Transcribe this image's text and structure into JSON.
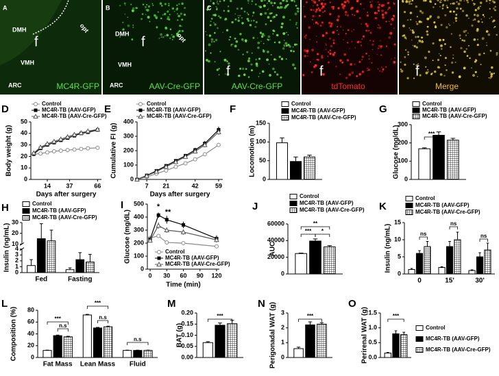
{
  "panels": [
    {
      "letter": "A",
      "labels": [
        "DMH",
        "f",
        "opt",
        "VMH",
        "ARC"
      ],
      "caption": "MC4R-GFP"
    },
    {
      "letter": "B",
      "labels": [
        "DMH",
        "f",
        "opt",
        "VMH",
        "ARC"
      ],
      "caption": "AAV-Cre-GFP"
    },
    {
      "letter": "C",
      "images": [
        {
          "label": "f",
          "caption": "AAV-Cre-GFP"
        },
        {
          "label": "f",
          "caption": "tdTomato"
        },
        {
          "label": "f",
          "caption": "Merge"
        }
      ]
    }
  ],
  "chart_data": [
    {
      "type": "line",
      "panel": "D",
      "ylabel": "Body weight (g)",
      "xlabel": "Days after surgery",
      "x": [
        0,
        7,
        14,
        21,
        28,
        35,
        42,
        49,
        56,
        66
      ],
      "xlim": [
        -3,
        70
      ],
      "xticks": [
        14,
        37,
        66
      ],
      "ylim": [
        0,
        50
      ],
      "yticks": [
        0,
        10,
        20,
        30,
        40,
        50
      ],
      "series": [
        {
          "name": "Control",
          "color": "#8a8a8a",
          "marker": "circle-open",
          "values": [
            22,
            22.5,
            23.5,
            24.5,
            25,
            25.5,
            26,
            26.5,
            27,
            27.5
          ]
        },
        {
          "name": "MC4R-TB (AAV-GFP)",
          "color": "#000000",
          "marker": "square-filled",
          "values": [
            22,
            27,
            30,
            32,
            34,
            36,
            38,
            40,
            41,
            43
          ]
        },
        {
          "name": "MC4R-TB (AAV-Cre-GFP)",
          "color": "#555555",
          "marker": "triangle-open",
          "values": [
            23,
            28,
            31,
            33,
            35,
            37,
            39,
            40.5,
            42,
            43.5
          ]
        }
      ]
    },
    {
      "type": "line",
      "panel": "E",
      "ylabel": "Cumulative FI (g)",
      "xlabel": "Days after surgery",
      "x": [
        0,
        7,
        14,
        21,
        28,
        35,
        42,
        49,
        59
      ],
      "xlim": [
        0,
        62
      ],
      "xticks": [
        7,
        21,
        42,
        59
      ],
      "ylim": [
        0,
        400
      ],
      "yticks": [
        0,
        100,
        200,
        300,
        400
      ],
      "series": [
        {
          "name": "Control",
          "color": "#8a8a8a",
          "marker": "circle-open",
          "values": [
            0,
            18,
            40,
            62,
            88,
            112,
            140,
            175,
            240
          ],
          "errors": [
            0,
            2,
            3,
            4,
            5,
            6,
            8,
            10,
            12
          ]
        },
        {
          "name": "MC4R-TB (AAV-GFP)",
          "color": "#000000",
          "marker": "square-filled",
          "values": [
            0,
            28,
            60,
            95,
            130,
            165,
            205,
            250,
            345
          ],
          "errors": [
            0,
            3,
            5,
            8,
            10,
            12,
            15,
            18,
            22
          ]
        },
        {
          "name": "MC4R-TB (AAV-Cre-GFP)",
          "color": "#555555",
          "marker": "triangle-open",
          "values": [
            0,
            25,
            55,
            88,
            122,
            158,
            195,
            240,
            330
          ],
          "errors": [
            0,
            3,
            5,
            7,
            9,
            11,
            14,
            17,
            20
          ]
        }
      ]
    },
    {
      "type": "bar",
      "panel": "F",
      "ylabel": "Locomotion (m)",
      "ylim": [
        0,
        150
      ],
      "yticks": [
        0,
        50,
        100,
        150
      ],
      "series": [
        {
          "name": "Control",
          "color": "#ffffff",
          "values": [
            98
          ],
          "errors": [
            13
          ]
        },
        {
          "name": "MC4R-TB (AAV-GFP)",
          "color": "#000000",
          "values": [
            48
          ],
          "errors": [
            12
          ]
        },
        {
          "name": "MC4R-TB (AAV-Cre-GFP)",
          "color": "#000000",
          "pattern": "grid",
          "values": [
            60
          ],
          "errors": [
            5
          ]
        }
      ]
    },
    {
      "type": "bar",
      "panel": "G",
      "ylabel": "Glucose (mg/dL)",
      "ylim": [
        0,
        300
      ],
      "yticks": [
        0,
        100,
        200,
        300
      ],
      "annotations": [
        "***"
      ],
      "series": [
        {
          "name": "Control",
          "color": "#ffffff",
          "values": [
            168
          ],
          "errors": [
            5
          ]
        },
        {
          "name": "MC4R-TB (AAV-GFP)",
          "color": "#000000",
          "values": [
            242
          ],
          "errors": [
            18
          ]
        },
        {
          "name": "MC4R-TB (AAV-Cre-GFP)",
          "color": "#000000",
          "pattern": "grid",
          "values": [
            215
          ],
          "errors": [
            10
          ]
        }
      ]
    },
    {
      "type": "bar",
      "panel": "H",
      "ylabel": "Insulin (ng/mL)",
      "categories": [
        "Fed",
        "Fasting"
      ],
      "ylim": [
        0,
        30
      ],
      "ybreak": [
        4,
        10
      ],
      "yticks": [
        0,
        1,
        2,
        3,
        4,
        10,
        20,
        30
      ],
      "series": [
        {
          "name": "Control",
          "color": "#ffffff",
          "values": [
            1.2,
            0.5
          ],
          "errors": [
            1,
            0.3
          ]
        },
        {
          "name": "MC4R-TB (AAV-GFP)",
          "color": "#000000",
          "values": [
            15,
            2.2
          ],
          "errors": [
            14,
            1.2
          ]
        },
        {
          "name": "MC4R-TB (AAV-Cre-GFP)",
          "color": "#000000",
          "pattern": "grid",
          "values": [
            13,
            1.8
          ],
          "errors": [
            10,
            1.3
          ]
        }
      ]
    },
    {
      "type": "line",
      "panel": "I",
      "ylabel": "Glucose (mg/dL)",
      "xlabel": "Time (min)",
      "annotations": [
        "*",
        "**"
      ],
      "x": [
        0,
        15,
        30,
        60,
        120
      ],
      "xlim": [
        -5,
        125
      ],
      "xticks": [
        0,
        30,
        60,
        90,
        120
      ],
      "ylim": [
        0,
        500
      ],
      "yticks": [
        0,
        100,
        200,
        300,
        400,
        500
      ],
      "series": [
        {
          "name": "Control",
          "color": "#8a8a8a",
          "marker": "circle-open",
          "values": [
            240,
            255,
            205,
            200,
            175
          ],
          "errors": [
            10,
            15,
            10,
            8,
            8
          ]
        },
        {
          "name": "MC4R-TB (AAV-GFP)",
          "color": "#000000",
          "marker": "square-filled",
          "values": [
            230,
            415,
            380,
            340,
            235
          ],
          "errors": [
            15,
            20,
            30,
            25,
            25
          ]
        },
        {
          "name": "MC4R-TB (AAV-Cre-GFP)",
          "color": "#555555",
          "marker": "triangle-open",
          "values": [
            220,
            335,
            300,
            285,
            225
          ],
          "errors": [
            15,
            25,
            20,
            20,
            20
          ]
        }
      ]
    },
    {
      "type": "bar",
      "panel": "J",
      "ylabel": "AUC",
      "ylim": [
        0,
        60000
      ],
      "yticks": [
        0,
        20000,
        40000,
        60000
      ],
      "annotations": [
        "***",
        "**",
        "*"
      ],
      "series": [
        {
          "name": "Control",
          "color": "#ffffff",
          "values": [
            24500
          ],
          "errors": [
            600
          ]
        },
        {
          "name": "MC4R-TB (AAV-GFP)",
          "color": "#000000",
          "values": [
            39500
          ],
          "errors": [
            2500
          ]
        },
        {
          "name": "MC4R-TB (AAV-Cre-GFP)",
          "color": "#000000",
          "pattern": "grid",
          "values": [
            32500
          ],
          "errors": [
            1500
          ]
        }
      ]
    },
    {
      "type": "bar",
      "panel": "K",
      "ylabel": "Insulin (ng/mL)",
      "categories": [
        "0",
        "15'",
        "30'"
      ],
      "ylim": [
        0,
        15
      ],
      "yticks": [
        0,
        5,
        10,
        15
      ],
      "annotations": [
        "ns",
        "ns",
        "ns"
      ],
      "series": [
        {
          "name": "Control",
          "color": "#ffffff",
          "values": [
            1.3,
            1.9,
            1.0
          ],
          "errors": [
            0.3,
            0.2,
            0.2
          ]
        },
        {
          "name": "MC4R-TB (AAV-GFP)",
          "color": "#000000",
          "values": [
            6,
            8,
            5
          ],
          "errors": [
            0.8,
            1.5,
            1.2
          ]
        },
        {
          "name": "MC4R-TB (AAV-Cre-GFP)",
          "color": "#000000",
          "pattern": "grid",
          "values": [
            8,
            10,
            7
          ],
          "errors": [
            1.5,
            2.2,
            2
          ]
        }
      ]
    },
    {
      "type": "bar",
      "panel": "L",
      "ylabel": "Composition (%)",
      "categories": [
        "Fat Mass",
        "Lean Mass",
        "Fluid"
      ],
      "ylim": [
        0,
        80
      ],
      "yticks": [
        0,
        20,
        40,
        60,
        80
      ],
      "annotations": [
        "***",
        "n.s",
        "***",
        "n.s",
        "n.s"
      ],
      "series": [
        {
          "color": "#ffffff",
          "values": [
            12,
            72,
            12
          ],
          "errors": [
            0.5,
            1,
            0.5
          ]
        },
        {
          "color": "#000000",
          "values": [
            37,
            50,
            12
          ],
          "errors": [
            1,
            1,
            0.5
          ]
        },
        {
          "color": "#000000",
          "pattern": "grid",
          "values": [
            35,
            52,
            12
          ],
          "errors": [
            1,
            1,
            0.5
          ]
        }
      ]
    },
    {
      "type": "bar",
      "panel": "M",
      "ylabel": "BAT (g)",
      "ylim": [
        0,
        0.2
      ],
      "yticks": [
        {
          "value": 0,
          "label": "0.00"
        },
        0.05,
        {
          "value": 0.1,
          "label": "0.10"
        },
        0.15,
        {
          "value": 0.2,
          "label": "0.20"
        }
      ],
      "annotations": [
        "***"
      ],
      "series": [
        {
          "color": "#ffffff",
          "values": [
            0.067
          ],
          "errors": [
            0.004
          ]
        },
        {
          "color": "#000000",
          "values": [
            0.145
          ],
          "errors": [
            0.01
          ]
        },
        {
          "color": "#000000",
          "pattern": "grid",
          "values": [
            0.152
          ],
          "errors": [
            0.015
          ]
        }
      ]
    },
    {
      "type": "bar",
      "panel": "N",
      "ylabel": "Perigonadal WAT (g)",
      "ylim": [
        0,
        3
      ],
      "yticks": [
        0,
        1,
        2,
        3
      ],
      "annotations": [
        "***"
      ],
      "series": [
        {
          "color": "#ffffff",
          "values": [
            0.6
          ],
          "errors": [
            0.1
          ]
        },
        {
          "color": "#000000",
          "values": [
            2.2
          ],
          "errors": [
            0.2
          ]
        },
        {
          "color": "#000000",
          "pattern": "grid",
          "values": [
            2.25
          ],
          "errors": [
            0.1
          ]
        }
      ]
    },
    {
      "type": "bar",
      "panel": "O",
      "ylabel": "Perirenal WAT (g)",
      "ylim": [
        0,
        1.5
      ],
      "yticks": [
        {
          "value": 0,
          "label": "0.0"
        },
        0.5,
        {
          "value": 1,
          "label": "1.0"
        },
        1.5
      ],
      "annotations": [
        "***"
      ],
      "series": [
        {
          "name": "Control",
          "color": "#ffffff",
          "values": [
            0.15
          ],
          "errors": [
            0.02
          ]
        },
        {
          "name": "MC4R-TB (AAV-GFP)",
          "color": "#000000",
          "values": [
            0.8
          ],
          "errors": [
            0.1
          ]
        },
        {
          "name": "MC4R-TB (AAV-Cre-GFP)",
          "color": "#000000",
          "pattern": "grid",
          "values": [
            0.77
          ],
          "errors": [
            0.08
          ]
        }
      ]
    }
  ]
}
